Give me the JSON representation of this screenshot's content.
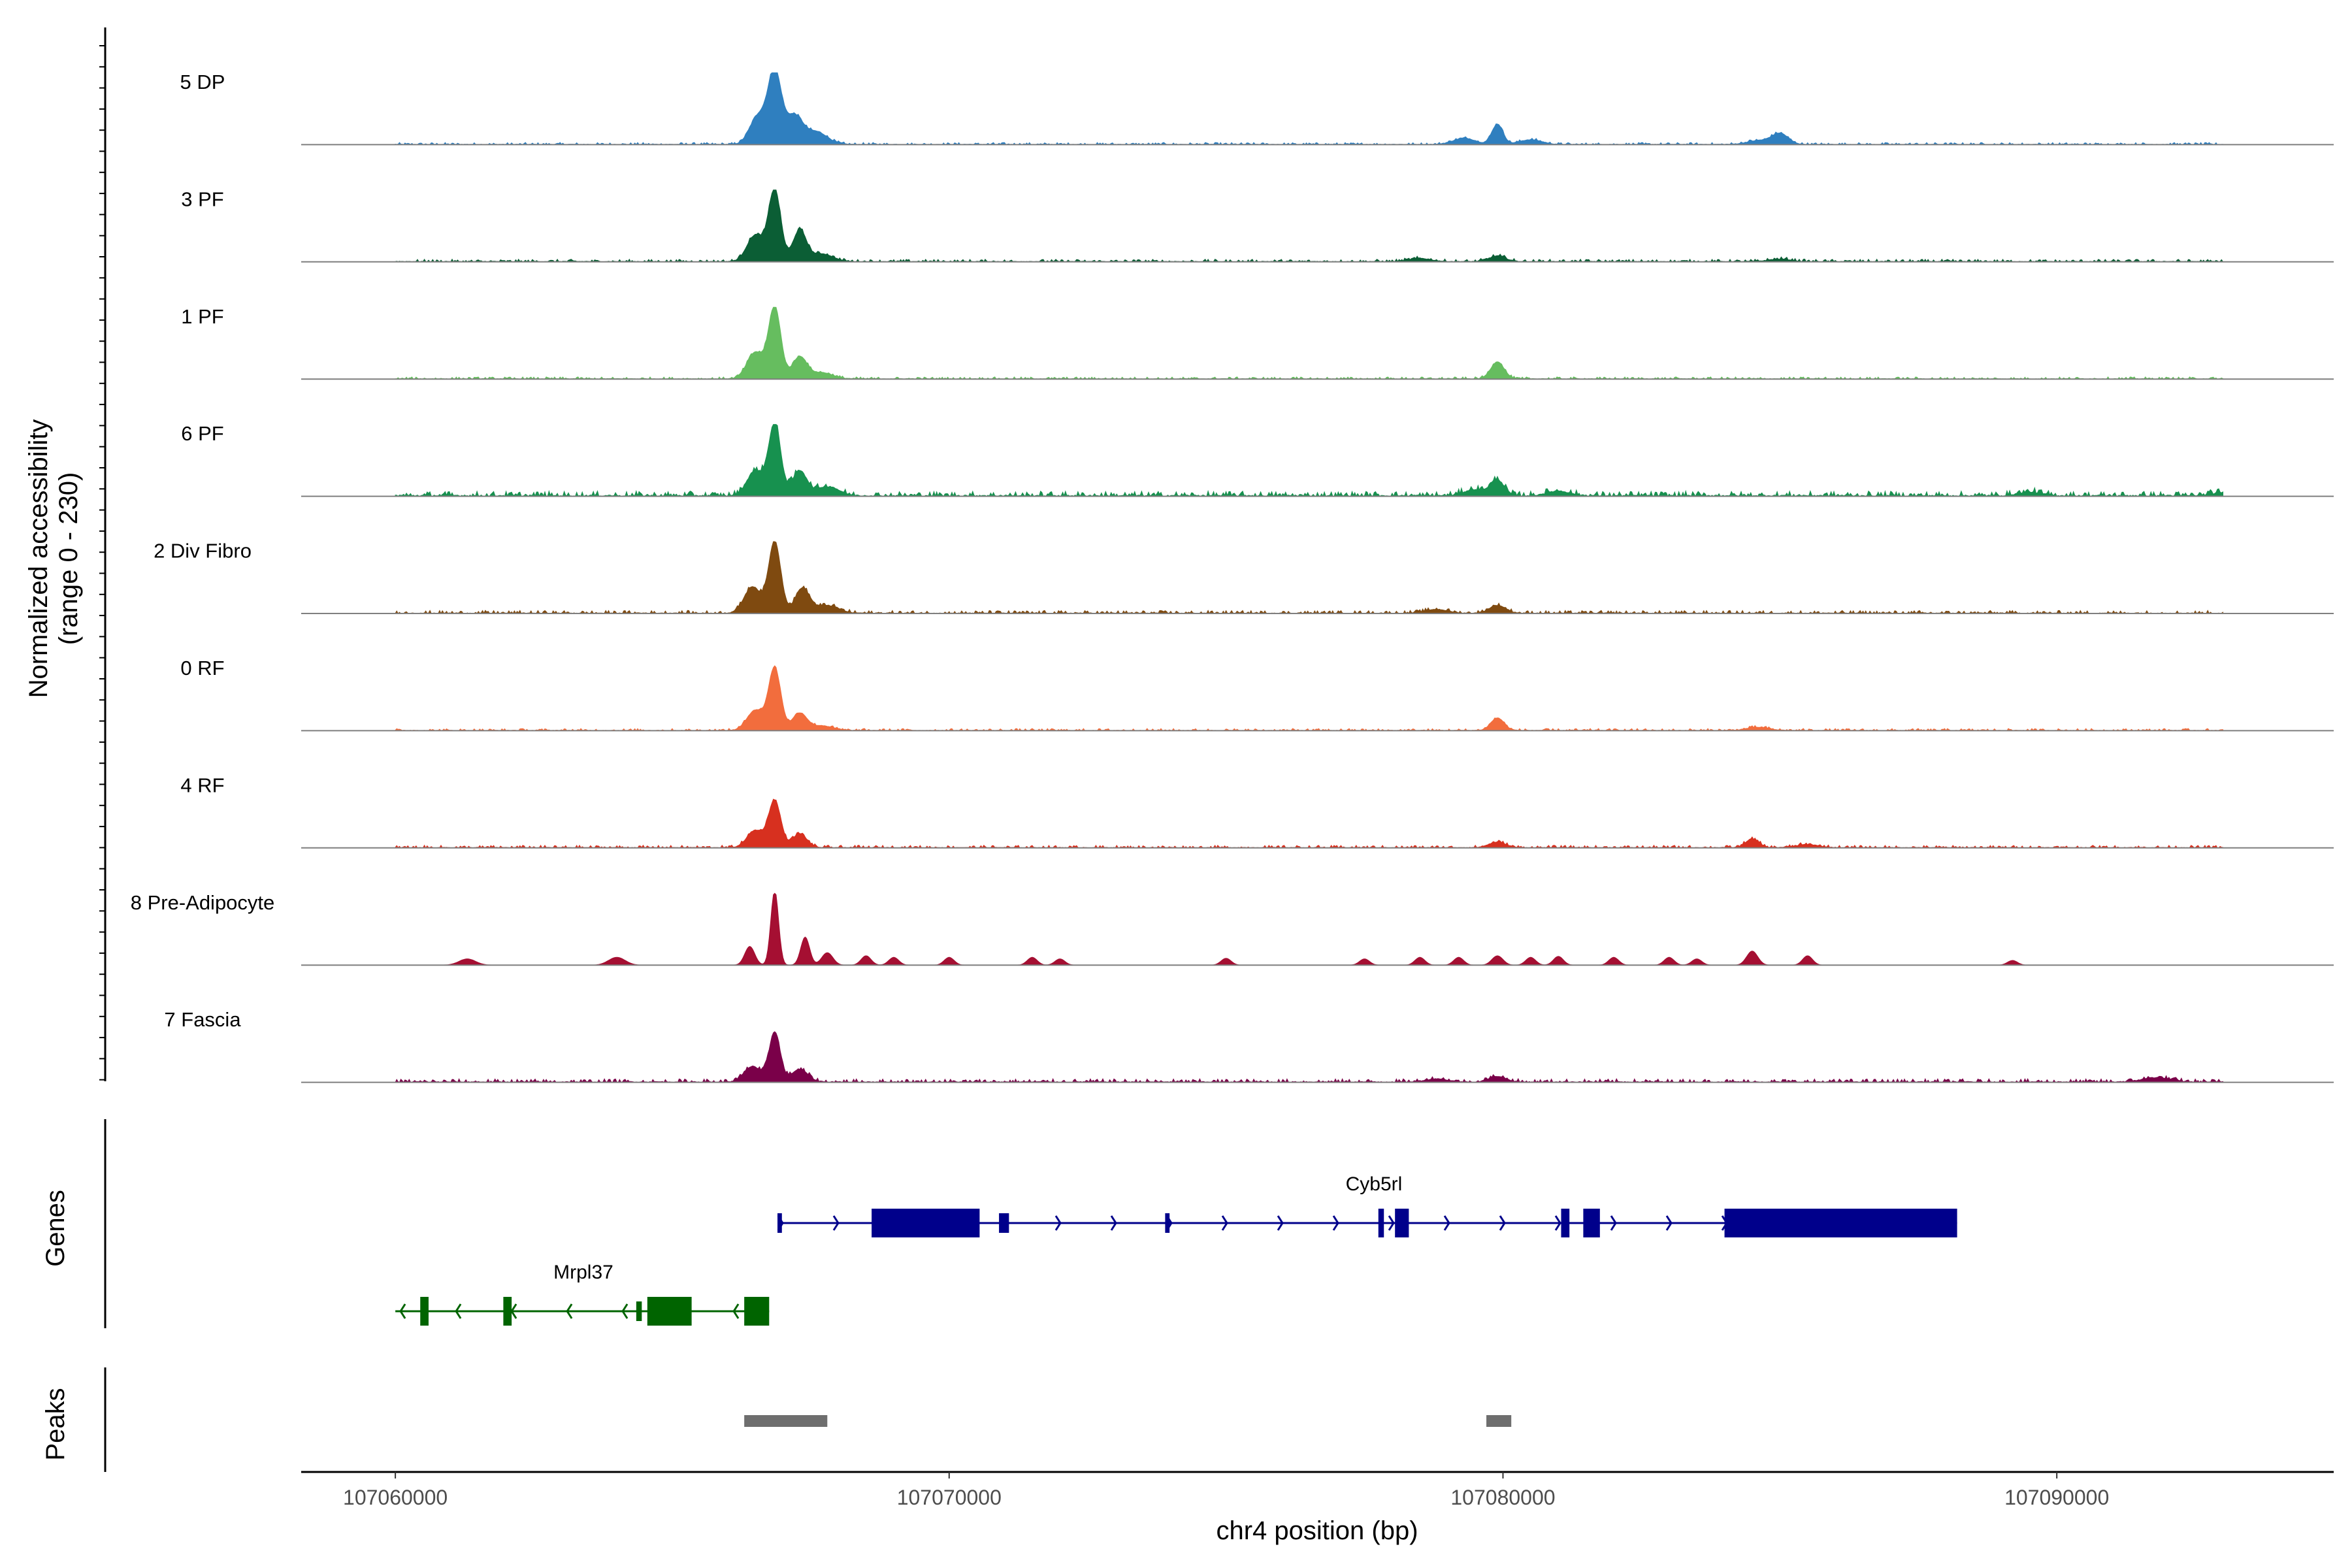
{
  "chart_data": {
    "type": "area",
    "ylabel_line1": "Normalized accessibility",
    "ylabel_line2": "(range 0 - 230)",
    "xlabel": "chr4 position (bp)",
    "xlim": [
      107058300,
      107095000
    ],
    "ylim": [
      0,
      230
    ],
    "x_ticks": [
      107060000,
      107070000,
      107080000,
      107090000
    ],
    "x_tick_labels": [
      "107060000",
      "107070000",
      "107080000",
      "107090000"
    ],
    "track_range": [
      107060000,
      107093000
    ],
    "gene_track_label": "Genes",
    "peak_track_label": "Peaks",
    "series": [
      {
        "name": "5 DP",
        "color": "#2f7fbf",
        "noise": 2.5,
        "peaks": [
          [
            107066850,
            230,
            120
          ],
          [
            107066550,
            90,
            150
          ],
          [
            107067200,
            90,
            150
          ],
          [
            107067600,
            40,
            200
          ],
          [
            107079900,
            65,
            100
          ],
          [
            107079300,
            20,
            200
          ],
          [
            107080500,
            15,
            200
          ],
          [
            107085000,
            35,
            150
          ],
          [
            107084600,
            12,
            200
          ]
        ]
      },
      {
        "name": "3 PF",
        "color": "#0b5e35",
        "noise": 3,
        "peaks": [
          [
            107066850,
            230,
            110
          ],
          [
            107066500,
            85,
            150
          ],
          [
            107067300,
            100,
            120
          ],
          [
            107067700,
            25,
            200
          ],
          [
            107079900,
            18,
            150
          ],
          [
            107078500,
            10,
            200
          ],
          [
            107085000,
            8,
            200
          ]
        ]
      },
      {
        "name": "1 PF",
        "color": "#66bd5f",
        "noise": 2.5,
        "peaks": [
          [
            107066850,
            230,
            110
          ],
          [
            107066500,
            85,
            150
          ],
          [
            107067300,
            70,
            130
          ],
          [
            107067700,
            20,
            200
          ],
          [
            107079900,
            55,
            120
          ]
        ]
      },
      {
        "name": "6 PF",
        "color": "#17914f",
        "noise": 6,
        "peaks": [
          [
            107066850,
            230,
            110
          ],
          [
            107066500,
            80,
            150
          ],
          [
            107067300,
            80,
            130
          ],
          [
            107067800,
            30,
            200
          ],
          [
            107079900,
            50,
            120
          ],
          [
            107079500,
            20,
            200
          ],
          [
            107081000,
            15,
            200
          ],
          [
            107089500,
            12,
            200
          ],
          [
            107093000,
            10,
            200
          ]
        ]
      },
      {
        "name": "2 Div Fibro",
        "color": "#7f4a10",
        "noise": 3.5,
        "peaks": [
          [
            107066850,
            230,
            110
          ],
          [
            107066450,
            85,
            150
          ],
          [
            107067350,
            80,
            130
          ],
          [
            107067800,
            25,
            200
          ],
          [
            107079900,
            25,
            150
          ],
          [
            107078800,
            12,
            200
          ]
        ]
      },
      {
        "name": "0 RF",
        "color": "#f26d3d",
        "noise": 2.5,
        "peaks": [
          [
            107066850,
            200,
            110
          ],
          [
            107066500,
            65,
            150
          ],
          [
            107067300,
            55,
            130
          ],
          [
            107067700,
            15,
            200
          ],
          [
            107079900,
            40,
            120
          ],
          [
            107084600,
            10,
            200
          ]
        ]
      },
      {
        "name": "4 RF",
        "color": "#d7301f",
        "noise": 3,
        "peaks": [
          [
            107066850,
            150,
            110
          ],
          [
            107066500,
            55,
            150
          ],
          [
            107067300,
            45,
            130
          ],
          [
            107079900,
            18,
            150
          ],
          [
            107084500,
            28,
            120
          ],
          [
            107085500,
            10,
            200
          ]
        ]
      },
      {
        "name": "8 Pre-Adipocyte",
        "color": "#a50f32",
        "noise": 0,
        "peaks": [
          [
            107066850,
            240,
            70
          ],
          [
            107066400,
            60,
            90
          ],
          [
            107067400,
            90,
            80
          ],
          [
            107067800,
            40,
            100
          ],
          [
            107064000,
            25,
            150
          ],
          [
            107061300,
            20,
            150
          ],
          [
            107068500,
            30,
            90
          ],
          [
            107069000,
            25,
            90
          ],
          [
            107070000,
            25,
            90
          ],
          [
            107071500,
            25,
            90
          ],
          [
            107072000,
            20,
            90
          ],
          [
            107075000,
            22,
            90
          ],
          [
            107077500,
            20,
            90
          ],
          [
            107078500,
            25,
            90
          ],
          [
            107079200,
            25,
            90
          ],
          [
            107079900,
            30,
            100
          ],
          [
            107080500,
            25,
            90
          ],
          [
            107081000,
            28,
            90
          ],
          [
            107082000,
            25,
            90
          ],
          [
            107083000,
            25,
            90
          ],
          [
            107083500,
            20,
            90
          ],
          [
            107084500,
            45,
            100
          ],
          [
            107085500,
            30,
            90
          ],
          [
            107089200,
            15,
            90
          ]
        ]
      },
      {
        "name": "7 Fascia",
        "color": "#7a0049",
        "noise": 4,
        "peaks": [
          [
            107066850,
            160,
            100
          ],
          [
            107066450,
            50,
            150
          ],
          [
            107067300,
            40,
            150
          ],
          [
            107079900,
            18,
            150
          ],
          [
            107078800,
            10,
            200
          ],
          [
            107091800,
            14,
            250
          ]
        ]
      }
    ],
    "genes": [
      {
        "name": "Cyb5rl",
        "strand": "+",
        "color": "#00008b",
        "start": 107066900,
        "end": 107088200,
        "exons": [
          [
            107066900,
            107066980
          ],
          [
            107068600,
            107070550
          ],
          [
            107070900,
            107071080
          ],
          [
            107073900,
            107073980
          ],
          [
            107077750,
            107077850
          ],
          [
            107078050,
            107078300
          ],
          [
            107081050,
            107081200
          ],
          [
            107081450,
            107081750
          ],
          [
            107084000,
            107088200
          ]
        ],
        "thick_exons": [
          1,
          4,
          5,
          6,
          7,
          8
        ]
      },
      {
        "name": "Mrpl37",
        "strand": "-",
        "color": "#006400",
        "start": 107060000,
        "end": 107066750,
        "exons": [
          [
            107060450,
            107060600
          ],
          [
            107061950,
            107062100
          ],
          [
            107064350,
            107064450
          ],
          [
            107064550,
            107065350
          ],
          [
            107066300,
            107066750
          ]
        ],
        "thick_exons": [
          0,
          1,
          3,
          4
        ]
      }
    ],
    "peaks": [
      [
        107066300,
        107067800
      ],
      [
        107079700,
        107080150
      ]
    ]
  }
}
